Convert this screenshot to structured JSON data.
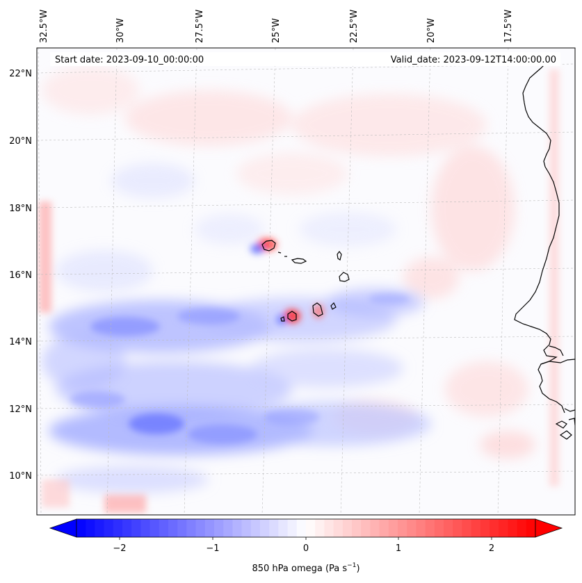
{
  "map": {
    "start_label": "Start date: 2023-09-10_00:00:00",
    "valid_label": "Valid_date: 2023-09-12T14:00:00.00",
    "lon_ticks": [
      "32.5°W",
      "30°W",
      "27.5°W",
      "25°W",
      "22.5°W",
      "20°W",
      "17.5°W"
    ],
    "lat_ticks": [
      "22°N",
      "20°N",
      "18°N",
      "16°N",
      "14°N",
      "12°N",
      "10°N"
    ],
    "field": "850 hPa omega",
    "colorbar": {
      "label_prefix": "850 hPa omega (Pa s",
      "label_sup": "−1",
      "label_suffix": ")",
      "ticks": [
        "−2",
        "−1",
        "0",
        "1",
        "2"
      ],
      "tick_values": [
        -2,
        -1,
        0,
        1,
        2
      ],
      "vmin": -2.5,
      "vmax": 2.5,
      "colormap": "bwr",
      "colors": {
        "neg": "#0000ff",
        "mid": "#ffffff",
        "pos": "#ff0000"
      }
    },
    "colors": {
      "coastline": "#000000",
      "gridline": "#bbbbbb"
    }
  }
}
